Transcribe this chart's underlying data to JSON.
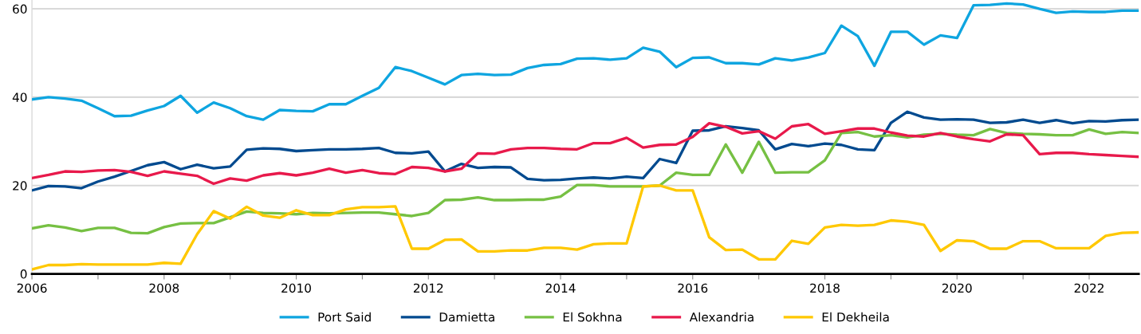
{
  "chart_data": {
    "type": "line",
    "x": [
      2006,
      2006.25,
      2006.5,
      2006.75,
      2007,
      2007.25,
      2007.5,
      2007.75,
      2008,
      2008.25,
      2008.5,
      2008.75,
      2009,
      2009.25,
      2009.5,
      2009.75,
      2010,
      2010.25,
      2010.5,
      2010.75,
      2011,
      2011.25,
      2011.5,
      2011.75,
      2012,
      2012.25,
      2012.5,
      2012.75,
      2013,
      2013.25,
      2013.5,
      2013.75,
      2014,
      2014.25,
      2014.5,
      2014.75,
      2015,
      2015.25,
      2015.5,
      2015.75,
      2016,
      2016.25,
      2016.5,
      2016.75,
      2017,
      2017.25,
      2017.5,
      2017.75,
      2018,
      2018.25,
      2018.5,
      2018.75,
      2019,
      2019.25,
      2019.5,
      2019.75,
      2020,
      2020.25,
      2020.5,
      2020.75,
      2021,
      2021.25,
      2021.5,
      2021.75,
      2022,
      2022.25,
      2022.5,
      2022.75
    ],
    "series": [
      {
        "name": "Port Said",
        "color": "#0ea5e0",
        "values": [
          39.5,
          40,
          39.7,
          39.2,
          37.5,
          35.7,
          35.8,
          37,
          38,
          40.3,
          36.5,
          38.8,
          37.5,
          35.7,
          34.9,
          37.1,
          36.9,
          36.8,
          38.4,
          38.4,
          40.3,
          42.1,
          46.8,
          45.9,
          44.4,
          42.9,
          45,
          45.3,
          45,
          45.1,
          46.6,
          47.3,
          47.5,
          48.7,
          48.8,
          48.5,
          48.8,
          51.2,
          50.3,
          46.8,
          48.9,
          49,
          47.7,
          47.7,
          47.4,
          48.8,
          48.3,
          49,
          50,
          56.2,
          53.8,
          47.1,
          54.8,
          54.8,
          51.9,
          54.0,
          53.4,
          60.8,
          60.9,
          61.2,
          61.0,
          60.0,
          59.1,
          59.4,
          59.3,
          59.3,
          59.6,
          59.6
        ]
      },
      {
        "name": "Damietta",
        "color": "#004a8f",
        "values": [
          18.9,
          19.9,
          19.8,
          19.4,
          20.9,
          22,
          23.3,
          24.6,
          25.3,
          23.7,
          24.7,
          23.9,
          24.3,
          28.1,
          28.4,
          28.3,
          27.8,
          28,
          28.2,
          28.2,
          28.3,
          28.5,
          27.4,
          27.3,
          27.7,
          23.2,
          24.9,
          24,
          24.2,
          24.1,
          21.5,
          21.2,
          21.3,
          21.6,
          21.8,
          21.6,
          22,
          21.7,
          26,
          25.1,
          32.4,
          32.5,
          33.4,
          33,
          32.5,
          28.2,
          29.4,
          28.9,
          29.5,
          29.2,
          28.2,
          28.0,
          34.2,
          36.7,
          35.4,
          34.9,
          35.0,
          34.9,
          34.2,
          34.3,
          34.9,
          34.2,
          34.8,
          34.1,
          34.6,
          34.5,
          34.8,
          34.9
        ]
      },
      {
        "name": "El Sokhna",
        "color": "#76c043",
        "values": [
          10.3,
          11,
          10.5,
          9.7,
          10.4,
          10.4,
          9.3,
          9.2,
          10.6,
          11.4,
          11.5,
          11.5,
          12.8,
          14.1,
          13.8,
          13.7,
          13.5,
          13.8,
          13.7,
          13.8,
          13.9,
          13.9,
          13.5,
          13.1,
          13.8,
          16.7,
          16.8,
          17.3,
          16.7,
          16.7,
          16.8,
          16.8,
          17.5,
          20.1,
          20.1,
          19.8,
          19.8,
          19.8,
          20,
          22.9,
          22.4,
          22.4,
          29.3,
          22.9,
          29.9,
          22.9,
          23,
          23,
          25.7,
          31.9,
          32.1,
          31.1,
          31.4,
          30.9,
          31.5,
          31.7,
          31.5,
          31.4,
          32.8,
          31.9,
          31.7,
          31.6,
          31.4,
          31.4,
          32.7,
          31.7,
          32.1,
          31.9
        ]
      },
      {
        "name": "Alexandria",
        "color": "#e8194b",
        "values": [
          21.7,
          22.4,
          23.2,
          23.1,
          23.4,
          23.5,
          23.1,
          22.2,
          23.2,
          22.7,
          22.2,
          20.4,
          21.6,
          21.1,
          22.3,
          22.8,
          22.3,
          22.9,
          23.8,
          22.9,
          23.5,
          22.8,
          22.6,
          24.2,
          24,
          23.2,
          23.8,
          27.3,
          27.2,
          28.2,
          28.5,
          28.5,
          28.3,
          28.2,
          29.6,
          29.6,
          30.8,
          28.6,
          29.2,
          29.3,
          31,
          34.1,
          33.3,
          31.8,
          32.3,
          30.6,
          33.4,
          33.9,
          31.7,
          32.3,
          32.9,
          32.9,
          32.0,
          31.3,
          31.1,
          31.9,
          31.1,
          30.5,
          30.0,
          31.6,
          31.4,
          27.1,
          27.4,
          27.4,
          27.1,
          26.9,
          26.7,
          26.5
        ]
      },
      {
        "name": "El Dekheila",
        "color": "#ffc800",
        "values": [
          1,
          2,
          2,
          2.2,
          2.1,
          2.1,
          2.1,
          2.1,
          2.5,
          2.3,
          9,
          14.2,
          12.5,
          15.2,
          13.2,
          12.7,
          14.4,
          13.3,
          13.3,
          14.6,
          15.1,
          15.1,
          15.3,
          5.7,
          5.7,
          7.7,
          7.8,
          5.1,
          5.1,
          5.3,
          5.3,
          5.9,
          5.9,
          5.5,
          6.7,
          6.9,
          6.9,
          19.8,
          20,
          18.9,
          18.9,
          8.3,
          5.4,
          5.5,
          3.3,
          3.3,
          7.5,
          6.8,
          10.5,
          11.1,
          10.9,
          11.1,
          12.1,
          11.8,
          11.1,
          5.2,
          7.6,
          7.4,
          5.7,
          5.7,
          7.4,
          7.4,
          5.8,
          5.8,
          5.8,
          8.6,
          9.3,
          9.4
        ]
      }
    ],
    "xlim": [
      2006,
      2022.75
    ],
    "xticks": [
      2006,
      {
        "value": 2007,
        "label": null
      },
      2008,
      {
        "value": 2009,
        "label": null
      },
      2010,
      {
        "value": 2011,
        "label": null
      },
      2012,
      {
        "value": 2013,
        "label": null
      },
      2014,
      {
        "value": 2015,
        "label": null
      },
      2016,
      {
        "value": 2017,
        "label": null
      },
      2018,
      {
        "value": 2019,
        "label": null
      },
      2020,
      {
        "value": 2021,
        "label": null
      },
      2022
    ],
    "ylim": [
      0,
      62
    ],
    "yticks": [
      0,
      20,
      40,
      60
    ],
    "grid": "y",
    "legend": "bottom",
    "marker": "none",
    "line_style": "solid"
  }
}
